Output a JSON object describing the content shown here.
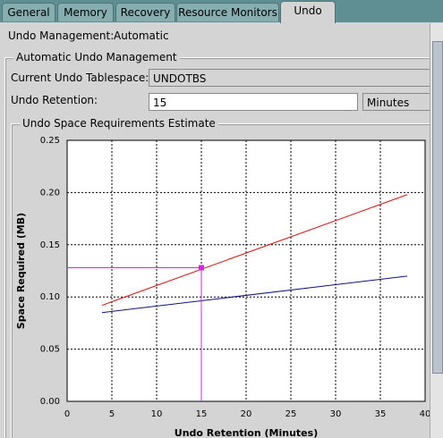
{
  "tabs": [
    "General",
    "Memory",
    "Recovery",
    "Resource Monitors",
    "Undo"
  ],
  "active_tab": 4,
  "undo_management": {
    "label": "Undo Management:",
    "value": "Automatic"
  },
  "automatic_group": {
    "title": "Automatic Undo Management",
    "tablespace": {
      "label": "Current Undo Tablespace:",
      "value": "UNDOTBS"
    },
    "retention": {
      "label": "Undo Retention:",
      "value": "15",
      "unit": "Minutes"
    }
  },
  "estimate_group": {
    "title": "Undo Space Requirements Estimate"
  },
  "chart_data": {
    "type": "line",
    "x_label": "Undo Retention (Minutes)",
    "y_label": "Space Required (MB)",
    "xlim": [
      0,
      40
    ],
    "xticks": [
      0,
      5,
      10,
      15,
      20,
      25,
      30,
      35,
      40
    ],
    "ylim": [
      0,
      0.25
    ],
    "yticks": [
      {
        "value": 0,
        "label": "0.00"
      },
      {
        "value": 0.05,
        "label": "0.05"
      },
      {
        "value": 0.1,
        "label": "0.10"
      },
      {
        "value": 0.15,
        "label": "0.15"
      },
      {
        "value": 0.2,
        "label": "0.20"
      },
      {
        "value": 0.25,
        "label": "0.25"
      }
    ],
    "grid": true,
    "series": [
      {
        "color": "#d01010",
        "x": [
          3.9,
          38
        ],
        "values": [
          0.092,
          0.198
        ]
      },
      {
        "color": "#101080",
        "x": [
          3.9,
          38
        ],
        "values": [
          0.085,
          0.12
        ]
      }
    ],
    "marker": {
      "x": 15,
      "y": 0.128,
      "color": "#e020e0"
    }
  }
}
